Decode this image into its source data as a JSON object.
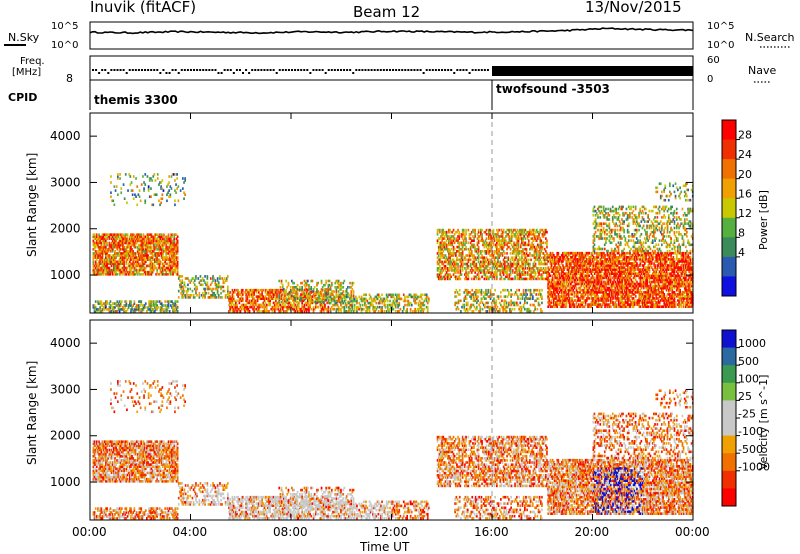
{
  "header": {
    "station": "Inuvik (fitACF)",
    "beam": "Beam 12",
    "date": "13/Nov/2015"
  },
  "top_panels": {
    "nsky_label": "N.Sky",
    "nsearch_label": "N.Search",
    "nsky_ticks": [
      "10^5",
      "10^0"
    ],
    "nsearch_ticks": [
      "10^5",
      "10^0"
    ],
    "freq_label_1": "Freq.",
    "freq_label_2": "[MHz]",
    "freq_ticks": [
      "8"
    ],
    "nave_label": "Nave",
    "nave_ticks": [
      "60",
      "0"
    ],
    "cpid_label": "CPID",
    "cpid_programs": [
      {
        "name": "themis 3300",
        "start_hour": 0
      },
      {
        "name": "twofsound -3503",
        "start_hour": 16
      }
    ]
  },
  "x_axis": {
    "label": "Time UT",
    "ticks": [
      "00:00",
      "04:00",
      "08:00",
      "12:00",
      "16:00",
      "20:00",
      "00:00"
    ],
    "range_hours": [
      0,
      24
    ]
  },
  "colors": {
    "power_scale": [
      "#1010e0",
      "#2a5bb0",
      "#3a8a5a",
      "#55b040",
      "#c8c800",
      "#f0a000",
      "#f07000",
      "#f03000",
      "#ff0000"
    ],
    "velocity_scale": [
      "#ff0000",
      "#f03000",
      "#f07000",
      "#f0a000",
      "#c8c8c8",
      "#c8c8c8",
      "#7ac040",
      "#3a9a50",
      "#2a6aa0",
      "#1010d0"
    ],
    "ground_scatter": "#c8c8c8"
  },
  "chart_data": [
    {
      "type": "line",
      "ylabel": "",
      "series": [
        {
          "name": "N.Sky",
          "description_values": [
            3.1,
            3.0,
            3.2,
            3.1,
            3.0,
            3.2,
            3.1,
            3.3,
            3.2,
            3.1,
            3.2,
            3.4,
            3.8,
            3.6,
            3.5
          ]
        },
        {
          "name": "N.Search",
          "description_values": []
        }
      ],
      "ylim": [
        0,
        5
      ],
      "log_scale": true
    },
    {
      "type": "scatter",
      "series": [
        {
          "name": "Freq.",
          "values_mhz": [
            10,
            10,
            10,
            10,
            10,
            10,
            10,
            10,
            10,
            10
          ]
        },
        {
          "name": "Nave",
          "values": [
            5,
            5,
            5,
            5,
            5,
            5,
            5,
            5,
            48,
            48,
            48,
            48
          ]
        }
      ],
      "ylim_freq": [
        8,
        12
      ],
      "ylim_nave": [
        0,
        60
      ]
    },
    {
      "type": "heatmap",
      "name": "Power",
      "xlabel": "Time UT",
      "ylabel": "Slant Range [km]",
      "colorbar_label": "Power [dB]",
      "colorbar_ticks": [
        "28",
        "24",
        "20",
        "16",
        "12",
        "8",
        "4"
      ],
      "y_ticks": [
        "4000",
        "3000",
        "2000",
        "1000"
      ],
      "ylim": [
        180,
        4500
      ],
      "xlim": [
        0,
        24
      ]
    },
    {
      "type": "heatmap",
      "name": "Velocity",
      "xlabel": "Time UT",
      "ylabel": "Slant Range [km]",
      "colorbar_label": "Velocity [m s^-1]",
      "colorbar_ticks": [
        "1000",
        "500",
        "100",
        "25",
        "-25",
        "-100",
        "-500",
        "-1000"
      ],
      "y_ticks": [
        "4000",
        "3000",
        "2000",
        "1000"
      ],
      "ylim": [
        180,
        4500
      ],
      "xlim": [
        0,
        24
      ]
    }
  ]
}
